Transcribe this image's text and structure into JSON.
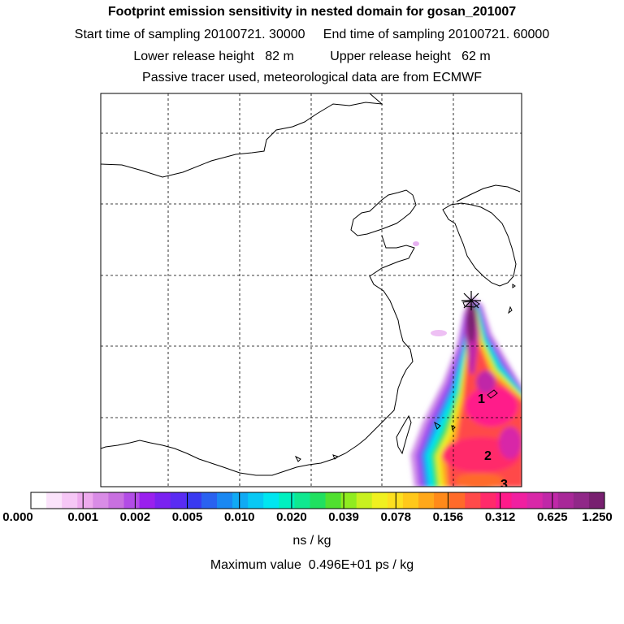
{
  "header": {
    "title": "Footprint emission sensitivity in nested domain for gosan_201007",
    "line2": "Start time of sampling 20100721. 30000     End time of sampling 20100721. 60000",
    "line3": "Lower release height   82 m          Upper release height   62 m",
    "line4": "Passive tracer used, meteorological data are from ECMWF"
  },
  "colorbar": {
    "labels": [
      "0.000",
      "0.001",
      "0.002",
      "0.005",
      "0.010",
      "0.020",
      "0.039",
      "0.078",
      "0.156",
      "0.312",
      "0.625",
      "1.250"
    ],
    "colors": [
      "#ffffff",
      "#fbe3fb",
      "#f6c7f6",
      "#eeaaee",
      "#d98ce6",
      "#c870e0",
      "#b24ce6",
      "#9a20ee",
      "#7a22f0",
      "#5a2cf2",
      "#3a3af0",
      "#2a62f0",
      "#1a88f2",
      "#10aaf4",
      "#08c8f4",
      "#00e6f0",
      "#00f0c0",
      "#10e890",
      "#20e060",
      "#50e030",
      "#90ec20",
      "#c8f020",
      "#f0f020",
      "#fde020",
      "#ffc81a",
      "#ffa81a",
      "#ff8a1a",
      "#ff6a2a",
      "#ff4a4a",
      "#ff2a6a",
      "#ff1a8a",
      "#f020a0",
      "#d828a8",
      "#c028a8",
      "#a82898",
      "#902888",
      "#782070"
    ],
    "units": "ns / kg",
    "max_value": "Maximum value  0.496E+01 ps / kg"
  },
  "map": {
    "numbered_markers": [
      "1",
      "2",
      "3"
    ],
    "release_site_symbol": "✳"
  }
}
